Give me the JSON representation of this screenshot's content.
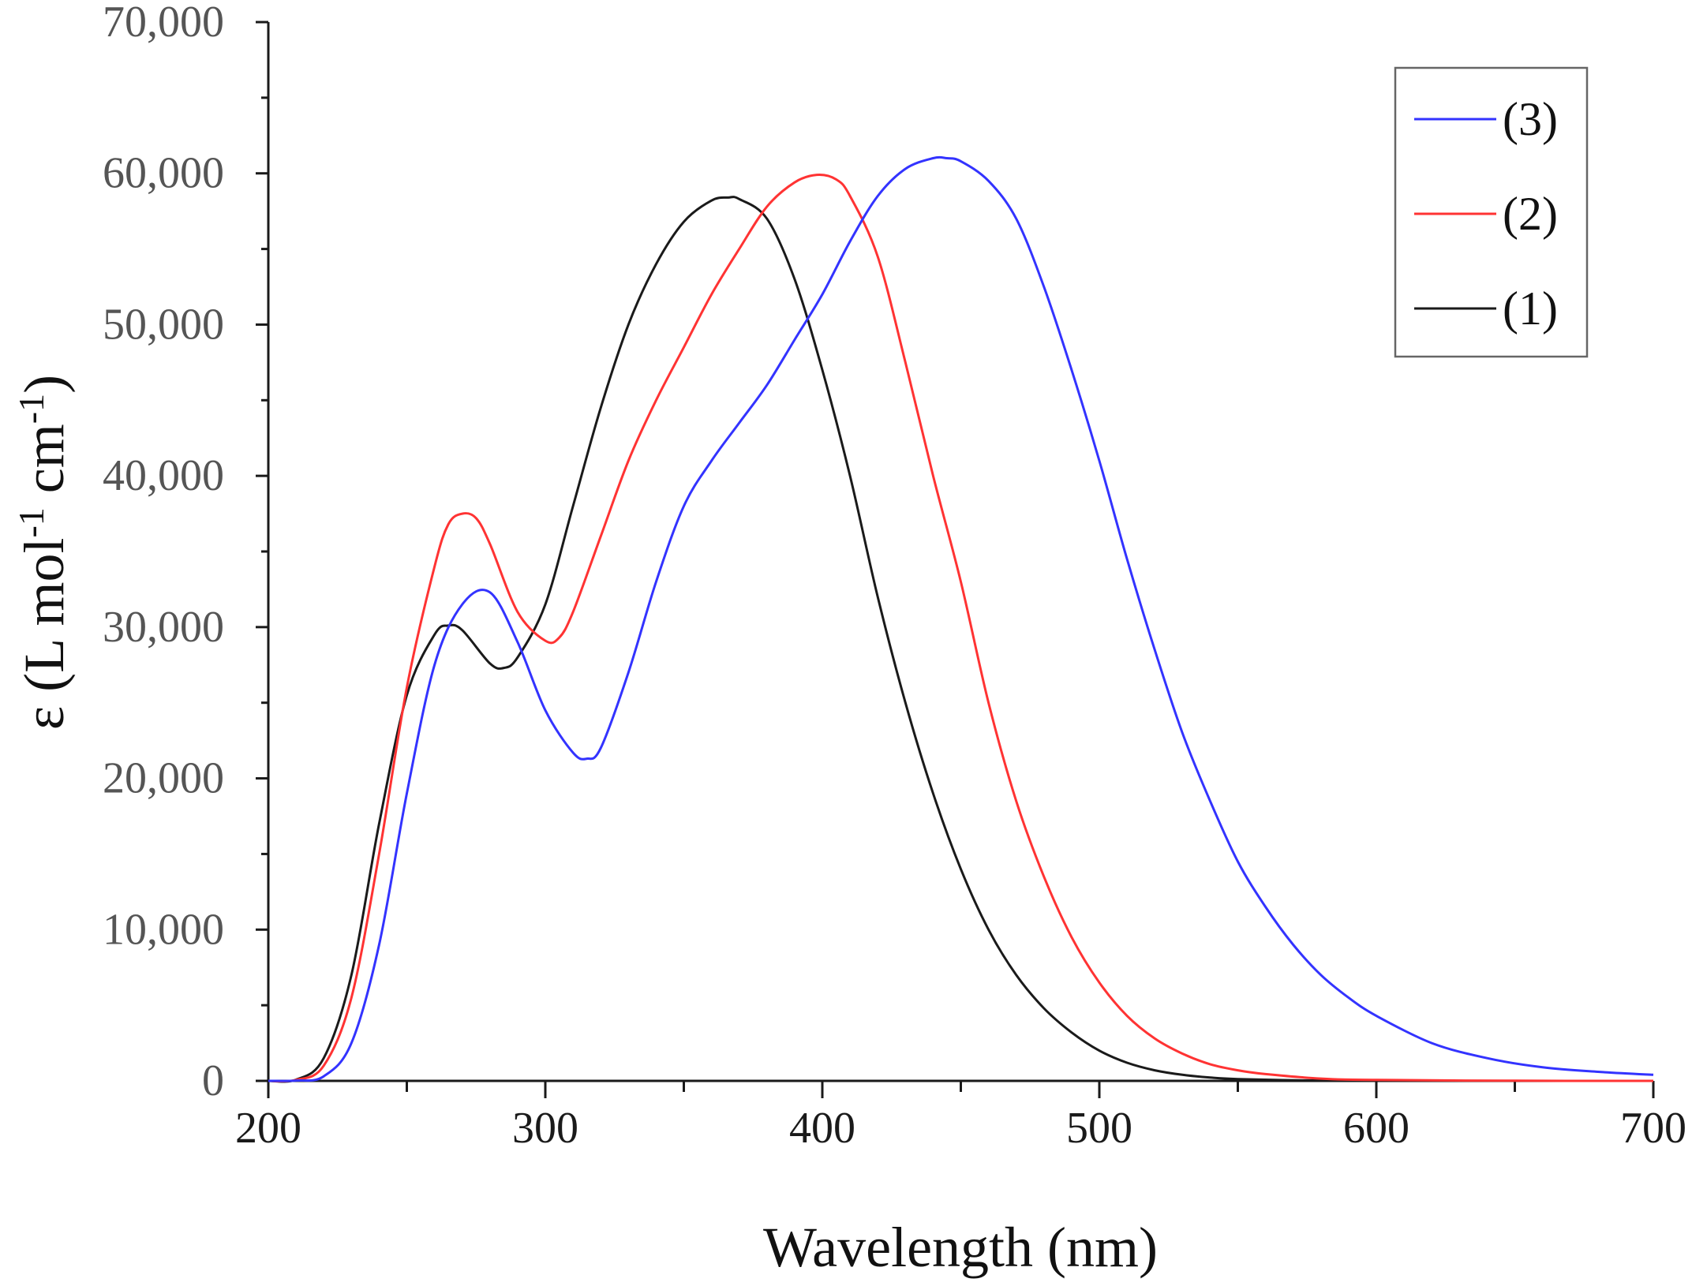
{
  "chart_data": {
    "type": "line",
    "title": "",
    "xlabel": "Wavelength (nm)",
    "ylabel_parts": {
      "main": "ε (L mol",
      "sup1": "-1",
      "mid": " cm",
      "sup2": "-1",
      "end": ")"
    },
    "xlim": [
      200,
      700
    ],
    "ylim": [
      0,
      70000
    ],
    "x_ticks": [
      200,
      300,
      400,
      500,
      600,
      700
    ],
    "x_tick_labels": [
      "200",
      "300",
      "400",
      "500",
      "600",
      "700"
    ],
    "y_ticks": [
      0,
      10000,
      20000,
      30000,
      40000,
      50000,
      60000,
      70000
    ],
    "y_tick_labels": [
      "0",
      "10,000",
      "20,000",
      "30,000",
      "40,000",
      "50,000",
      "60,000",
      "70,000"
    ],
    "grid": false,
    "legend_position": "top-right",
    "series": [
      {
        "name": "(3)",
        "color": "#3333ff",
        "points": [
          [
            200,
            0
          ],
          [
            210,
            20
          ],
          [
            220,
            300
          ],
          [
            230,
            2500
          ],
          [
            240,
            9000
          ],
          [
            250,
            19000
          ],
          [
            260,
            27500
          ],
          [
            270,
            31500
          ],
          [
            280,
            32300
          ],
          [
            290,
            29000
          ],
          [
            300,
            24500
          ],
          [
            310,
            21700
          ],
          [
            315,
            21300
          ],
          [
            320,
            22000
          ],
          [
            330,
            27000
          ],
          [
            340,
            33000
          ],
          [
            350,
            38000
          ],
          [
            360,
            41000
          ],
          [
            370,
            43500
          ],
          [
            380,
            46000
          ],
          [
            390,
            49000
          ],
          [
            400,
            52000
          ],
          [
            410,
            55500
          ],
          [
            420,
            58500
          ],
          [
            430,
            60300
          ],
          [
            440,
            61000
          ],
          [
            445,
            61000
          ],
          [
            450,
            60800
          ],
          [
            460,
            59500
          ],
          [
            470,
            57000
          ],
          [
            480,
            52500
          ],
          [
            490,
            47000
          ],
          [
            500,
            41000
          ],
          [
            510,
            34500
          ],
          [
            520,
            28500
          ],
          [
            530,
            23000
          ],
          [
            540,
            18500
          ],
          [
            550,
            14500
          ],
          [
            560,
            11500
          ],
          [
            570,
            9000
          ],
          [
            580,
            7000
          ],
          [
            590,
            5500
          ],
          [
            600,
            4300
          ],
          [
            620,
            2500
          ],
          [
            640,
            1500
          ],
          [
            660,
            900
          ],
          [
            680,
            600
          ],
          [
            700,
            400
          ]
        ]
      },
      {
        "name": "(2)",
        "color": "#ff3333",
        "points": [
          [
            200,
            0
          ],
          [
            210,
            60
          ],
          [
            220,
            1000
          ],
          [
            230,
            5500
          ],
          [
            240,
            15000
          ],
          [
            250,
            26000
          ],
          [
            260,
            34000
          ],
          [
            265,
            36800
          ],
          [
            270,
            37500
          ],
          [
            275,
            37200
          ],
          [
            280,
            35500
          ],
          [
            290,
            31000
          ],
          [
            300,
            29100
          ],
          [
            305,
            29300
          ],
          [
            310,
            31000
          ],
          [
            320,
            36000
          ],
          [
            330,
            41000
          ],
          [
            340,
            45000
          ],
          [
            350,
            48500
          ],
          [
            360,
            52000
          ],
          [
            370,
            55000
          ],
          [
            380,
            57800
          ],
          [
            390,
            59400
          ],
          [
            398,
            59900
          ],
          [
            405,
            59600
          ],
          [
            410,
            58500
          ],
          [
            420,
            54500
          ],
          [
            430,
            47500
          ],
          [
            440,
            40000
          ],
          [
            450,
            33000
          ],
          [
            460,
            25000
          ],
          [
            470,
            18500
          ],
          [
            480,
            13500
          ],
          [
            490,
            9500
          ],
          [
            500,
            6500
          ],
          [
            510,
            4300
          ],
          [
            520,
            2800
          ],
          [
            530,
            1800
          ],
          [
            540,
            1100
          ],
          [
            550,
            700
          ],
          [
            560,
            450
          ],
          [
            580,
            150
          ],
          [
            600,
            60
          ],
          [
            650,
            10
          ],
          [
            700,
            0
          ]
        ]
      },
      {
        "name": "(1)",
        "color": "#1a1a1a",
        "points": [
          [
            200,
            0
          ],
          [
            210,
            80
          ],
          [
            220,
            1500
          ],
          [
            230,
            7000
          ],
          [
            240,
            17000
          ],
          [
            250,
            25500
          ],
          [
            260,
            29500
          ],
          [
            265,
            30100
          ],
          [
            270,
            29800
          ],
          [
            280,
            27600
          ],
          [
            285,
            27300
          ],
          [
            290,
            28000
          ],
          [
            300,
            31500
          ],
          [
            310,
            38000
          ],
          [
            320,
            44500
          ],
          [
            330,
            50000
          ],
          [
            340,
            54000
          ],
          [
            350,
            56800
          ],
          [
            360,
            58200
          ],
          [
            366,
            58400
          ],
          [
            370,
            58300
          ],
          [
            380,
            57000
          ],
          [
            390,
            53000
          ],
          [
            400,
            47000
          ],
          [
            410,
            40000
          ],
          [
            420,
            32000
          ],
          [
            430,
            25000
          ],
          [
            440,
            19000
          ],
          [
            450,
            14000
          ],
          [
            460,
            10000
          ],
          [
            470,
            7000
          ],
          [
            480,
            4800
          ],
          [
            490,
            3200
          ],
          [
            500,
            2000
          ],
          [
            510,
            1200
          ],
          [
            520,
            700
          ],
          [
            530,
            400
          ],
          [
            540,
            220
          ],
          [
            550,
            120
          ],
          [
            575,
            30
          ],
          [
            600,
            10
          ],
          [
            650,
            0
          ],
          [
            700,
            0
          ]
        ]
      }
    ]
  }
}
